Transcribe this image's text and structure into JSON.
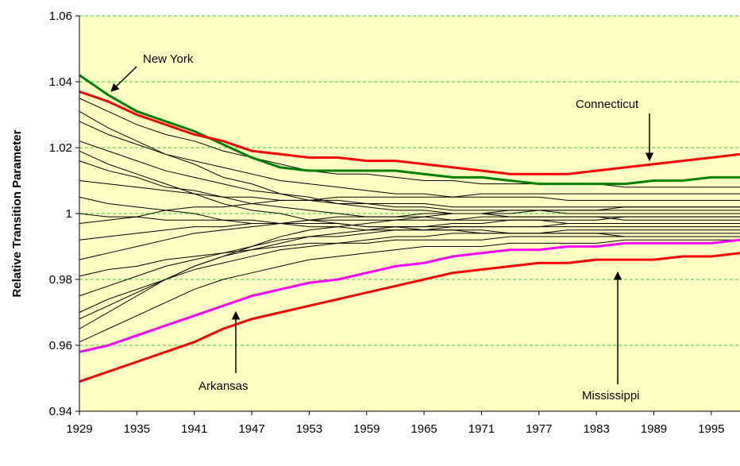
{
  "chart_data": {
    "type": "line",
    "y_label": "Relative Transition Parameter",
    "x": [
      1929,
      1932,
      1935,
      1938,
      1941,
      1944,
      1947,
      1950,
      1953,
      1956,
      1959,
      1962,
      1965,
      1968,
      1971,
      1974,
      1977,
      1980,
      1983,
      1986,
      1989,
      1992,
      1995,
      1998
    ],
    "xlim": [
      1929,
      1998
    ],
    "xticks": [
      1929,
      1935,
      1941,
      1947,
      1953,
      1959,
      1965,
      1971,
      1977,
      1983,
      1989,
      1995
    ],
    "ylim": [
      0.94,
      1.06
    ],
    "yticks": [
      0.94,
      0.96,
      0.98,
      1,
      1.02,
      1.04,
      1.06
    ],
    "grid": true,
    "background": "#ffffc4",
    "grid_color": "#33cc33",
    "series": [
      {
        "color": "#000000",
        "values": [
          1.035,
          1.031,
          1.027,
          1.024,
          1.022,
          1.019,
          1.017,
          1.015,
          1.013,
          1.012,
          1.012,
          1.011,
          1.01,
          1.01,
          1.009,
          1.009,
          1.009,
          1.009,
          1.009,
          1.008,
          1.008,
          1.008,
          1.008,
          1.008
        ]
      },
      {
        "color": "#000000",
        "values": [
          1.028,
          1.024,
          1.021,
          1.018,
          1.016,
          1.014,
          1.012,
          1.01,
          1.009,
          1.008,
          1.007,
          1.006,
          1.006,
          1.005,
          1.005,
          1.005,
          1.005,
          1.004,
          1.004,
          1.004,
          1.004,
          1.004,
          1.004,
          1.004
        ]
      },
      {
        "color": "#000000",
        "values": [
          1.022,
          1.019,
          1.016,
          1.013,
          1.011,
          1.009,
          1.007,
          1.006,
          1.004,
          1.004,
          1.003,
          1.002,
          1.002,
          1.001,
          1.001,
          1.001,
          1.001,
          1.0,
          1.0,
          1.0,
          1.0,
          1.0,
          1.0,
          1.0
        ]
      },
      {
        "color": "#000000",
        "values": [
          1.016,
          1.013,
          1.011,
          1.008,
          1.007,
          1.005,
          1.003,
          1.002,
          1.001,
          1.0,
          0.999,
          0.999,
          0.999,
          0.998,
          0.998,
          0.998,
          0.998,
          0.997,
          0.997,
          0.997,
          0.997,
          0.997,
          0.997,
          0.997
        ]
      },
      {
        "color": "#000000",
        "values": [
          1.01,
          1.009,
          1.008,
          1.007,
          1.006,
          1.005,
          1.005,
          1.004,
          1.004,
          1.003,
          1.003,
          1.003,
          1.003,
          1.002,
          1.002,
          1.002,
          1.002,
          1.002,
          1.002,
          1.002,
          1.002,
          1.002,
          1.002,
          1.002
        ]
      },
      {
        "color": "#000000",
        "values": [
          1.005,
          1.003,
          1.002,
          1.001,
          1.0,
          0.998,
          0.998,
          0.997,
          0.996,
          0.996,
          0.995,
          0.995,
          0.995,
          0.995,
          0.995,
          0.994,
          0.994,
          0.994,
          0.994,
          0.994,
          0.994,
          0.994,
          0.994,
          0.994
        ]
      },
      {
        "color": "#000000",
        "values": [
          1.0,
          0.999,
          0.999,
          0.998,
          0.998,
          0.998,
          0.997,
          0.997,
          0.997,
          0.997,
          0.996,
          0.996,
          0.996,
          0.996,
          0.996,
          0.996,
          0.996,
          0.996,
          0.996,
          0.996,
          0.996,
          0.996,
          0.996,
          0.996
        ]
      },
      {
        "color": "#000000",
        "values": [
          0.997,
          0.998,
          0.999,
          1.001,
          1.002,
          1.002,
          1.003,
          1.004,
          1.004,
          1.005,
          1.005,
          1.005,
          1.005,
          1.005,
          1.006,
          1.006,
          1.006,
          1.006,
          1.006,
          1.006,
          1.006,
          1.006,
          1.006,
          1.006
        ]
      },
      {
        "color": "#000000",
        "values": [
          0.992,
          0.993,
          0.994,
          0.995,
          0.996,
          0.996,
          0.997,
          0.997,
          0.998,
          0.998,
          0.998,
          0.998,
          0.998,
          0.998,
          0.999,
          0.999,
          0.999,
          0.999,
          0.999,
          0.999,
          0.999,
          0.999,
          0.999,
          0.999
        ]
      },
      {
        "color": "#000000",
        "values": [
          0.986,
          0.988,
          0.99,
          0.992,
          0.994,
          0.995,
          0.996,
          0.997,
          0.998,
          0.999,
          0.999,
          0.999,
          1.0,
          1.0,
          1.0,
          1.0,
          1.001,
          1.001,
          1.001,
          1.001,
          1.001,
          1.001,
          1.001,
          1.001
        ]
      },
      {
        "color": "#000000",
        "values": [
          0.981,
          0.983,
          0.984,
          0.986,
          0.987,
          0.988,
          0.989,
          0.99,
          0.991,
          0.991,
          0.991,
          0.992,
          0.992,
          0.992,
          0.992,
          0.993,
          0.993,
          0.993,
          0.993,
          0.993,
          0.993,
          0.993,
          0.993,
          0.993
        ]
      },
      {
        "color": "#000000",
        "values": [
          0.975,
          0.978,
          0.981,
          0.984,
          0.986,
          0.988,
          0.99,
          0.992,
          0.993,
          0.993,
          0.994,
          0.995,
          0.995,
          0.996,
          0.996,
          0.996,
          0.996,
          0.997,
          0.997,
          0.997,
          0.997,
          0.997,
          0.997,
          0.997
        ]
      },
      {
        "color": "#000000",
        "values": [
          0.97,
          0.974,
          0.977,
          0.98,
          0.983,
          0.985,
          0.987,
          0.989,
          0.99,
          0.991,
          0.992,
          0.993,
          0.993,
          0.994,
          0.994,
          0.994,
          0.994,
          0.995,
          0.995,
          0.995,
          0.995,
          0.995,
          0.995,
          0.995
        ]
      },
      {
        "color": "#000000",
        "values": [
          0.965,
          0.97,
          0.975,
          0.98,
          0.984,
          0.987,
          0.99,
          0.993,
          0.995,
          0.996,
          0.997,
          0.998,
          0.999,
          1.0,
          1.0,
          1.001,
          1.001,
          1.001,
          1.001,
          1.002,
          1.002,
          1.002,
          1.002,
          1.002
        ]
      },
      {
        "color": "#000000",
        "values": [
          0.961,
          0.965,
          0.969,
          0.973,
          0.977,
          0.98,
          0.982,
          0.984,
          0.986,
          0.987,
          0.988,
          0.989,
          0.99,
          0.99,
          0.99,
          0.991,
          0.991,
          0.991,
          0.991,
          0.992,
          0.992,
          0.992,
          0.992,
          0.992
        ]
      },
      {
        "color": "#000000",
        "values": [
          1.031,
          1.026,
          1.022,
          1.018,
          1.015,
          1.011,
          1.009,
          1.006,
          1.005,
          1.003,
          1.002,
          1.001,
          1.001,
          1.0,
          1.0,
          0.999,
          0.999,
          0.999,
          0.999,
          0.998,
          0.998,
          0.998,
          0.998,
          0.998
        ]
      },
      {
        "color": "#000000",
        "values": [
          1.019,
          1.015,
          1.012,
          1.009,
          1.006,
          1.003,
          1.001,
          1.0,
          0.998,
          0.997,
          0.996,
          0.996,
          0.995,
          0.995,
          0.994,
          0.994,
          0.994,
          0.994,
          0.994,
          0.993,
          0.993,
          0.993,
          0.993,
          0.993
        ]
      },
      {
        "color": "#000000",
        "values": [
          0.968,
          0.972,
          0.976,
          0.98,
          0.984,
          0.987,
          0.989,
          0.991,
          0.993,
          0.994,
          0.995,
          0.996,
          0.996,
          0.997,
          0.997,
          0.998,
          0.998,
          0.998,
          0.998,
          0.999,
          0.999,
          0.999,
          0.999,
          0.999
        ]
      },
      {
        "name": "New York",
        "color": "#008000",
        "values": [
          1.042,
          1.036,
          1.031,
          1.028,
          1.025,
          1.021,
          1.017,
          1.014,
          1.013,
          1.013,
          1.013,
          1.013,
          1.012,
          1.011,
          1.011,
          1.01,
          1.009,
          1.009,
          1.009,
          1.009,
          1.01,
          1.01,
          1.011,
          1.011
        ]
      },
      {
        "name": "Connecticut",
        "color": "#ff0000",
        "values": [
          1.037,
          1.034,
          1.03,
          1.027,
          1.024,
          1.022,
          1.019,
          1.018,
          1.017,
          1.017,
          1.016,
          1.016,
          1.015,
          1.014,
          1.013,
          1.012,
          1.012,
          1.012,
          1.013,
          1.014,
          1.015,
          1.016,
          1.017,
          1.018
        ]
      },
      {
        "name": "Mississippi",
        "color": "#ff0000",
        "values": [
          0.949,
          0.952,
          0.955,
          0.958,
          0.961,
          0.965,
          0.968,
          0.97,
          0.972,
          0.974,
          0.976,
          0.978,
          0.98,
          0.982,
          0.983,
          0.984,
          0.985,
          0.985,
          0.986,
          0.986,
          0.986,
          0.987,
          0.987,
          0.988
        ]
      },
      {
        "name": "Arkansas",
        "color": "#ff00ff",
        "values": [
          0.958,
          0.96,
          0.963,
          0.966,
          0.969,
          0.972,
          0.975,
          0.977,
          0.979,
          0.98,
          0.982,
          0.984,
          0.985,
          0.987,
          0.988,
          0.989,
          0.989,
          0.99,
          0.99,
          0.991,
          0.991,
          0.991,
          0.991,
          0.992
        ]
      }
    ]
  }
}
